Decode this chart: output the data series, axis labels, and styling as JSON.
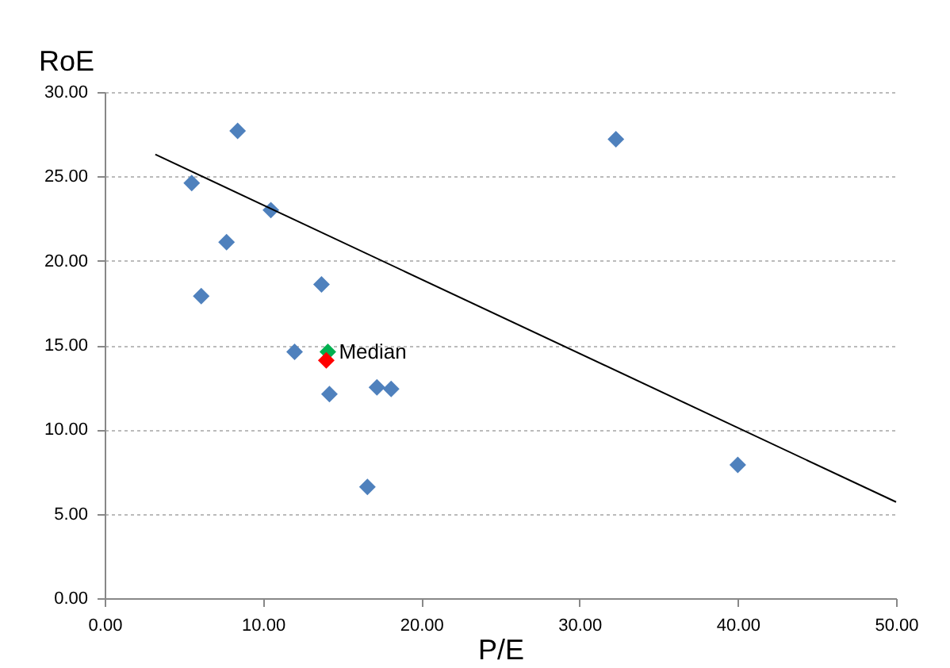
{
  "chart_data": {
    "type": "scatter",
    "xlabel": "P/E",
    "ylabel": "RoE",
    "xlim": [
      0,
      50
    ],
    "ylim": [
      0,
      30
    ],
    "xticks": [
      {
        "value": 0,
        "label": "0.00"
      },
      {
        "value": 10,
        "label": "10.00"
      },
      {
        "value": 20,
        "label": "20.00"
      },
      {
        "value": 30,
        "label": "30.00"
      },
      {
        "value": 40,
        "label": "40.00"
      },
      {
        "value": 50,
        "label": "50.00"
      }
    ],
    "yticks": [
      {
        "value": 0,
        "label": "0.00"
      },
      {
        "value": 5,
        "label": "5.00"
      },
      {
        "value": 10,
        "label": "10.00"
      },
      {
        "value": 15,
        "label": "15.00"
      },
      {
        "value": 20,
        "label": "20.00"
      },
      {
        "value": 25,
        "label": "25.00"
      },
      {
        "value": 30,
        "label": "30.00"
      }
    ],
    "grid": "y",
    "marker": "diamond",
    "series": [
      {
        "color": "#4f81bd",
        "x": [
          8.4,
          5.5,
          10.5,
          7.7,
          6.1,
          13.7,
          12.0,
          14.2,
          17.2,
          18.1,
          16.6,
          40.0,
          32.3
        ],
        "values": [
          27.7,
          24.6,
          23.0,
          21.1,
          17.9,
          18.6,
          14.6,
          12.1,
          12.5,
          12.4,
          6.6,
          7.9,
          27.2
        ]
      },
      {
        "name": "Median",
        "color": "#00b050",
        "x": [
          14.1
        ],
        "values": [
          14.6
        ]
      },
      {
        "color": "#ff0000",
        "x": [
          14.0
        ],
        "values": [
          14.1
        ]
      },
      {
        "type": "line",
        "color": "#000000",
        "marker": "none",
        "x": [
          3.2,
          50
        ],
        "values": [
          26.3,
          5.7
        ]
      }
    ]
  }
}
